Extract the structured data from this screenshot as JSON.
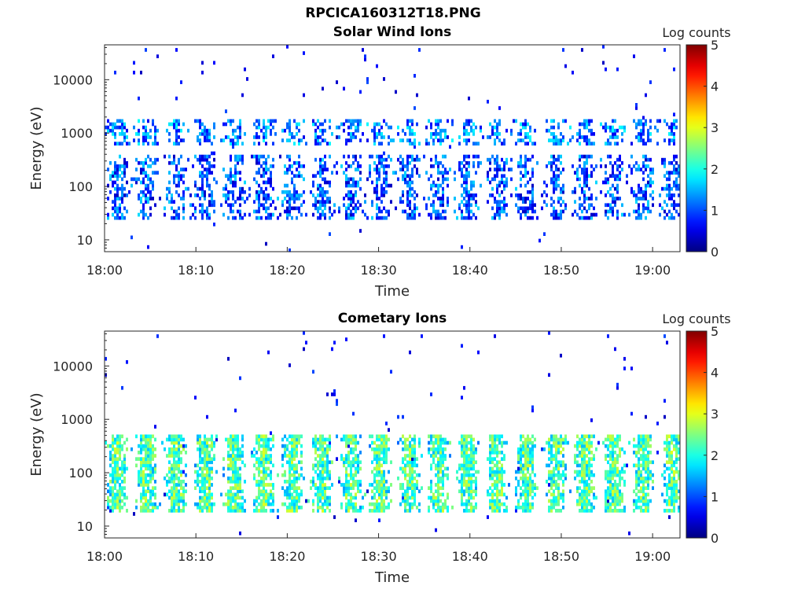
{
  "figure": {
    "title": "RPCICA160312T18.PNG"
  },
  "chart_data": [
    {
      "type": "heatmap",
      "title": "Solar Wind Ions",
      "xlabel": "Time",
      "ylabel": "Energy (eV)",
      "x_ticks": [
        "18:00",
        "18:10",
        "18:20",
        "18:30",
        "18:40",
        "18:50",
        "19:00"
      ],
      "x_range": [
        "18:00",
        "19:03"
      ],
      "y_scale": "log",
      "y_ticks": [
        "10",
        "100",
        "1000",
        "10000"
      ],
      "y_range": [
        6,
        45000
      ],
      "colorbar": {
        "label": "Log counts",
        "ticks": [
          "0",
          "1",
          "2",
          "3",
          "4",
          "5"
        ],
        "range": [
          0,
          5
        ],
        "colormap": "jet"
      },
      "sweep_period_minutes": 3.2,
      "bands": [
        {
          "energy_low": 600,
          "energy_high": 1800,
          "typical_log_counts": 1.2
        },
        {
          "energy_low": 25,
          "energy_high": 400,
          "typical_log_counts": 1.0
        }
      ],
      "peak_log_counts": 2.4
    },
    {
      "type": "heatmap",
      "title": "Cometary Ions",
      "xlabel": "Time",
      "ylabel": "Energy (eV)",
      "x_ticks": [
        "18:00",
        "18:10",
        "18:20",
        "18:30",
        "18:40",
        "18:50",
        "19:00"
      ],
      "x_range": [
        "18:00",
        "19:03"
      ],
      "y_scale": "log",
      "y_ticks": [
        "10",
        "100",
        "1000",
        "10000"
      ],
      "y_range": [
        6,
        45000
      ],
      "colorbar": {
        "label": "Log counts",
        "ticks": [
          "0",
          "1",
          "2",
          "3",
          "4",
          "5"
        ],
        "range": [
          0,
          5
        ],
        "colormap": "jet"
      },
      "sweep_period_minutes": 3.2,
      "bands": [
        {
          "energy_low": 18,
          "energy_high": 550,
          "typical_log_counts": 1.8
        }
      ],
      "peak_log_counts": 3.0
    }
  ]
}
